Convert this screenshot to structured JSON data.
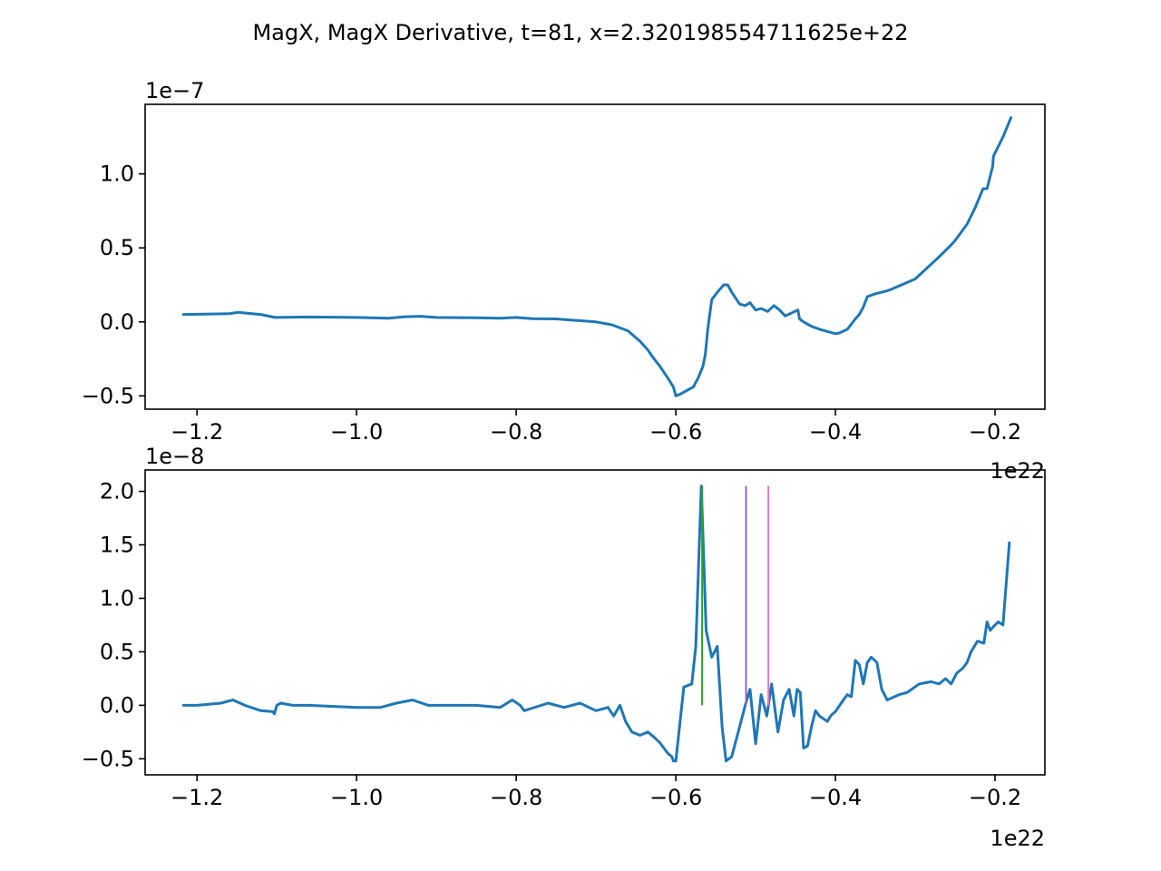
{
  "figure": {
    "title": "MagX, MagX Derivative, t=81, x=2.320198554711625e+22"
  },
  "chart_data": [
    {
      "type": "line",
      "title": "",
      "xlabel": "",
      "ylabel": "",
      "x_offset_label": "1e22",
      "y_offset_label": "1e−7",
      "xlim": [
        -1.265,
        -0.1375
      ],
      "ylim": [
        -0.59,
        1.47
      ],
      "x_ticks": [
        -1.2,
        -1.0,
        -0.8,
        -0.6,
        -0.4,
        -0.2
      ],
      "x_tick_labels": [
        "−1.2",
        "−1.0",
        "−0.8",
        "−0.6",
        "−0.4",
        "−0.2"
      ],
      "y_ticks": [
        -0.5,
        0.0,
        0.5,
        1.0
      ],
      "y_tick_labels": [
        "−0.5",
        "0.0",
        "0.5",
        "1.0"
      ],
      "grid": false,
      "series": [
        {
          "color": "#1f77b4",
          "x": [
            -1.217,
            -1.16,
            -1.148,
            -1.14,
            -1.12,
            -1.102,
            -1.06,
            -1.0,
            -0.96,
            -0.94,
            -0.92,
            -0.9,
            -0.85,
            -0.82,
            -0.8,
            -0.78,
            -0.75,
            -0.7,
            -0.68,
            -0.66,
            -0.645,
            -0.635,
            -0.63,
            -0.62,
            -0.61,
            -0.603,
            -0.6,
            -0.595,
            -0.585,
            -0.578,
            -0.572,
            -0.566,
            -0.563,
            -0.56,
            -0.555,
            -0.548,
            -0.54,
            -0.535,
            -0.53,
            -0.52,
            -0.513,
            -0.507,
            -0.5,
            -0.493,
            -0.485,
            -0.477,
            -0.47,
            -0.463,
            -0.455,
            -0.447,
            -0.445,
            -0.44,
            -0.43,
            -0.42,
            -0.4,
            -0.395,
            -0.385,
            -0.375,
            -0.37,
            -0.365,
            -0.36,
            -0.35,
            -0.335,
            -0.33,
            -0.3,
            -0.292,
            -0.27,
            -0.255,
            -0.25,
            -0.235,
            -0.225,
            -0.215,
            -0.21,
            -0.203,
            -0.202,
            -0.19,
            -0.18
          ],
          "y": [
            0.05,
            0.055,
            0.065,
            0.06,
            0.05,
            0.03,
            0.033,
            0.03,
            0.025,
            0.035,
            0.038,
            0.03,
            0.028,
            0.025,
            0.03,
            0.022,
            0.02,
            0.0,
            -0.02,
            -0.06,
            -0.13,
            -0.19,
            -0.23,
            -0.3,
            -0.38,
            -0.44,
            -0.5,
            -0.49,
            -0.46,
            -0.44,
            -0.38,
            -0.3,
            -0.22,
            -0.05,
            0.15,
            0.2,
            0.25,
            0.25,
            0.2,
            0.12,
            0.11,
            0.13,
            0.08,
            0.09,
            0.07,
            0.11,
            0.08,
            0.04,
            0.06,
            0.08,
            0.02,
            0.0,
            -0.03,
            -0.05,
            -0.08,
            -0.075,
            -0.05,
            0.02,
            0.05,
            0.1,
            0.17,
            0.19,
            0.21,
            0.22,
            0.29,
            0.33,
            0.44,
            0.52,
            0.55,
            0.66,
            0.77,
            0.9,
            0.9,
            1.05,
            1.12,
            1.25,
            1.38
          ]
        }
      ]
    },
    {
      "type": "line",
      "title": "",
      "xlabel": "",
      "ylabel": "",
      "x_offset_label": "1e22",
      "y_offset_label": "1e−8",
      "xlim": [
        -1.265,
        -0.1375
      ],
      "ylim": [
        -0.65,
        2.2
      ],
      "x_ticks": [
        -1.2,
        -1.0,
        -0.8,
        -0.6,
        -0.4,
        -0.2
      ],
      "x_tick_labels": [
        "−1.2",
        "−1.0",
        "−0.8",
        "−0.6",
        "−0.4",
        "−0.2"
      ],
      "y_ticks": [
        -0.5,
        0.0,
        0.5,
        1.0,
        1.5,
        2.0
      ],
      "y_tick_labels": [
        "−0.5",
        "0.0",
        "0.5",
        "1.0",
        "1.5",
        "2.0"
      ],
      "grid": false,
      "series": [
        {
          "color": "#1f77b4",
          "x": [
            -1.217,
            -1.2,
            -1.17,
            -1.155,
            -1.14,
            -1.12,
            -1.105,
            -1.103,
            -1.1,
            -1.095,
            -1.08,
            -1.06,
            -1.0,
            -0.97,
            -0.95,
            -0.93,
            -0.91,
            -0.85,
            -0.82,
            -0.805,
            -0.795,
            -0.79,
            -0.76,
            -0.74,
            -0.72,
            -0.7,
            -0.685,
            -0.678,
            -0.67,
            -0.663,
            -0.655,
            -0.645,
            -0.635,
            -0.627,
            -0.62,
            -0.61,
            -0.605,
            -0.603,
            -0.6,
            -0.59,
            -0.58,
            -0.575,
            -0.568,
            -0.562,
            -0.555,
            -0.548,
            -0.542,
            -0.537,
            -0.53,
            -0.52,
            -0.513,
            -0.507,
            -0.5,
            -0.493,
            -0.486,
            -0.48,
            -0.472,
            -0.465,
            -0.458,
            -0.452,
            -0.448,
            -0.444,
            -0.44,
            -0.435,
            -0.43,
            -0.425,
            -0.42,
            -0.41,
            -0.405,
            -0.4,
            -0.39,
            -0.385,
            -0.38,
            -0.375,
            -0.37,
            -0.365,
            -0.36,
            -0.355,
            -0.348,
            -0.342,
            -0.335,
            -0.32,
            -0.31,
            -0.295,
            -0.28,
            -0.27,
            -0.262,
            -0.255,
            -0.248,
            -0.24,
            -0.235,
            -0.23,
            -0.222,
            -0.214,
            -0.21,
            -0.206,
            -0.2,
            -0.196,
            -0.19,
            -0.182
          ],
          "y": [
            0.0,
            0.0,
            0.02,
            0.05,
            0.0,
            -0.05,
            -0.06,
            -0.08,
            0.0,
            0.02,
            0.0,
            0.0,
            -0.02,
            -0.02,
            0.02,
            0.05,
            0.0,
            0.0,
            -0.02,
            0.05,
            0.0,
            -0.05,
            0.02,
            -0.02,
            0.02,
            -0.05,
            -0.02,
            -0.1,
            0.0,
            -0.15,
            -0.25,
            -0.28,
            -0.25,
            -0.3,
            -0.35,
            -0.45,
            -0.48,
            -0.52,
            -0.52,
            0.17,
            0.2,
            0.55,
            2.05,
            0.7,
            0.45,
            0.55,
            -0.2,
            -0.52,
            -0.48,
            -0.2,
            0.0,
            0.15,
            -0.36,
            0.1,
            -0.1,
            0.2,
            -0.25,
            0.05,
            0.15,
            -0.1,
            0.15,
            0.12,
            -0.4,
            -0.38,
            -0.2,
            -0.05,
            -0.1,
            -0.15,
            -0.09,
            -0.06,
            0.05,
            0.1,
            0.08,
            0.42,
            0.38,
            0.2,
            0.4,
            0.45,
            0.4,
            0.15,
            0.05,
            0.1,
            0.12,
            0.2,
            0.22,
            0.2,
            0.25,
            0.2,
            0.3,
            0.35,
            0.4,
            0.5,
            0.6,
            0.58,
            0.78,
            0.7,
            0.75,
            0.78,
            0.75,
            1.52
          ]
        }
      ],
      "vlines": [
        {
          "x": -0.567,
          "ymin": 0.0,
          "ymax": 2.05,
          "color": "#2ca02c"
        },
        {
          "x": -0.512,
          "ymin": 0.0,
          "ymax": 2.05,
          "color": "#9467bd"
        },
        {
          "x": -0.484,
          "ymin": 0.0,
          "ymax": 2.05,
          "color": "#e377c2"
        }
      ]
    }
  ]
}
